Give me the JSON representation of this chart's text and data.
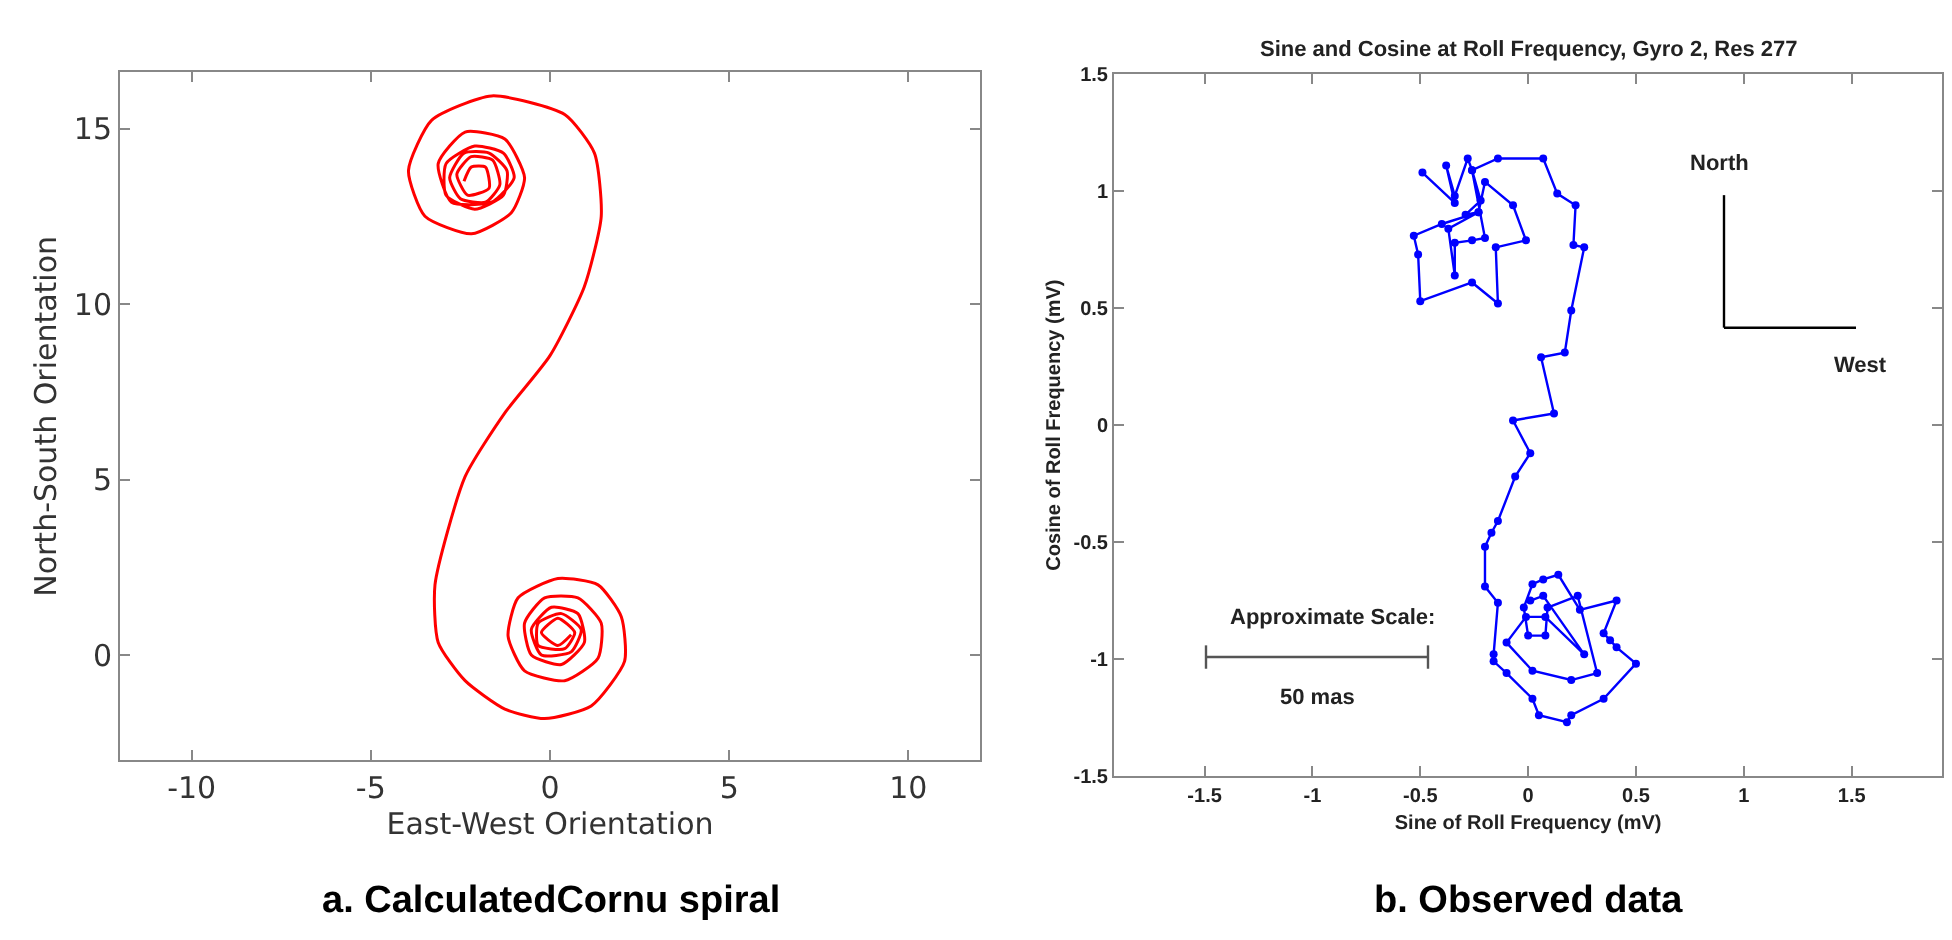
{
  "chart_data": [
    {
      "type": "line",
      "xlabel": "East-West Orientation",
      "ylabel": "North-South Orientation",
      "xlim": [
        -12,
        12
      ],
      "ylim": [
        -3,
        16.6
      ],
      "xticks": [
        -10,
        -5,
        0,
        5,
        10
      ],
      "yticks": [
        0,
        5,
        10,
        15
      ],
      "marker": "none",
      "line_style": "solid",
      "annotations": [
        "a. CalculatedCornu spiral"
      ],
      "series": [
        {
          "color": "#ff0000",
          "x": [
            0.59,
            0.22,
            -0.24,
            0.22,
            0.69,
            0.41,
            -0.33,
            -0.33,
            0.32,
            0.87,
            0.59,
            -0.24,
            -0.52,
            0.04,
            0.78,
            0.96,
            0.32,
            -0.52,
            -0.71,
            -0.15,
            0.78,
            1.43,
            1.34,
            0.41,
            -0.71,
            -1.17,
            -0.89,
            0.22,
            1.34,
            1.99,
            2.08,
            1.15,
            -0.15,
            -1.26,
            -2.37,
            -3.12,
            -3.21,
            -2.37,
            -1.26,
            0,
            0.96,
            1.43,
            1.24,
            0.41,
            -1.63,
            -3.3,
            -3.95,
            -3.49,
            -2.19,
            -1.08,
            -0.71,
            -1.26,
            -2.37,
            -3.12,
            -2.75,
            -1.63,
            -1.0,
            -1.3,
            -2.1,
            -2.9,
            -2.9,
            -2.1,
            -1.3,
            -1.2,
            -1.7,
            -2.4,
            -2.8,
            -2.5,
            -1.8,
            -1.4,
            -1.6,
            -2.2,
            -2.6,
            -2.3,
            -1.7,
            -1.8,
            -2.2,
            -2.4
          ],
          "values": [
            0.58,
            0.27,
            0.64,
            1.05,
            0.64,
            0.18,
            0.27,
            0.91,
            1.18,
            0.73,
            0.09,
            0.0,
            0.73,
            1.36,
            1.18,
            0.36,
            -0.27,
            0,
            0.91,
            1.63,
            1.63,
            0.91,
            -0.09,
            -0.73,
            -0.45,
            0.54,
            1.63,
            2.18,
            2.0,
            1.09,
            -0.18,
            -1.45,
            -1.81,
            -1.54,
            -0.73,
            0.36,
            2.0,
            5.08,
            6.9,
            8.53,
            10.5,
            12.5,
            14.3,
            15.4,
            15.93,
            15.24,
            13.8,
            12.5,
            12.0,
            12.6,
            13.6,
            14.7,
            14.9,
            14.0,
            12.9,
            12.9,
            13.6,
            14.3,
            14.5,
            14.0,
            13.1,
            12.7,
            13.1,
            13.8,
            14.3,
            14.3,
            13.6,
            13.0,
            12.9,
            13.4,
            14.1,
            14.2,
            13.7,
            13.1,
            13.3,
            13.9,
            13.9,
            13.5
          ]
        }
      ]
    },
    {
      "type": "line",
      "title": "Sine and Cosine at Roll Frequency, Gyro 2, Res 277",
      "xlabel": "Sine of Roll Frequency (mV)",
      "ylabel": "Cosine of Roll Frequency (mV)",
      "xlim": [
        -1.92,
        1.92
      ],
      "ylim": [
        -1.5,
        1.5
      ],
      "xticks": [
        -1.5,
        -1,
        -0.5,
        0,
        0.5,
        1,
        1.5
      ],
      "yticks": [
        -1.5,
        -1,
        -0.5,
        0,
        0.5,
        1,
        1.5
      ],
      "marker": "circle",
      "line_style": "solid",
      "annotations": [
        "North",
        "West",
        "Approximate Scale:",
        "50 mas",
        "b. Observed data"
      ],
      "series": [
        {
          "color": "#0000ff",
          "x": [
            -0.49,
            -0.34,
            -0.38,
            -0.34,
            -0.28,
            -0.26,
            -0.22,
            -0.29,
            -0.23,
            -0.4,
            -0.53,
            -0.51,
            -0.5,
            -0.26,
            -0.14,
            -0.15,
            -0.01,
            -0.07,
            -0.2,
            -0.23,
            -0.37,
            -0.34,
            -0.34,
            -0.26,
            -0.2,
            -0.26,
            -0.14,
            0.07,
            0.135,
            0.22,
            0.21,
            0.26,
            0.2,
            0.17,
            0.06,
            0.12,
            -0.07,
            0.01,
            -0.06,
            -0.14,
            -0.17,
            -0.2,
            -0.2,
            -0.14,
            -0.16,
            -0.16,
            -0.1,
            0.02,
            0.05,
            0.18,
            0.2,
            0.35,
            0.5,
            0.41,
            0.38,
            0.35,
            0.41,
            0.24,
            0.14,
            0.07,
            0.02,
            -0.02,
            0,
            0.08,
            0.09,
            0.23,
            0.32,
            0.2,
            0.02,
            -0.1,
            -0.01,
            0.08,
            0.26,
            0.07,
            0.01
          ],
          "values": [
            1.08,
            0.95,
            1.11,
            0.98,
            1.14,
            1.09,
            0.96,
            0.9,
            0.91,
            0.86,
            0.81,
            0.73,
            0.53,
            0.61,
            0.52,
            0.76,
            0.79,
            0.94,
            1.04,
            0.91,
            0.84,
            0.64,
            0.78,
            0.79,
            0.8,
            1.09,
            1.14,
            1.14,
            0.99,
            0.94,
            0.77,
            0.76,
            0.49,
            0.31,
            0.29,
            0.05,
            0.02,
            -0.12,
            -0.22,
            -0.41,
            -0.46,
            -0.52,
            -0.69,
            -0.76,
            -0.98,
            -1.01,
            -1.06,
            -1.17,
            -1.24,
            -1.27,
            -1.24,
            -1.17,
            -1.02,
            -0.95,
            -0.92,
            -0.89,
            -0.75,
            -0.79,
            -0.64,
            -0.66,
            -0.68,
            -0.78,
            -0.9,
            -0.9,
            -0.78,
            -0.73,
            -1.06,
            -1.09,
            -1.05,
            -0.93,
            -0.82,
            -0.82,
            -0.98,
            -0.73,
            -0.75
          ]
        }
      ]
    }
  ]
}
